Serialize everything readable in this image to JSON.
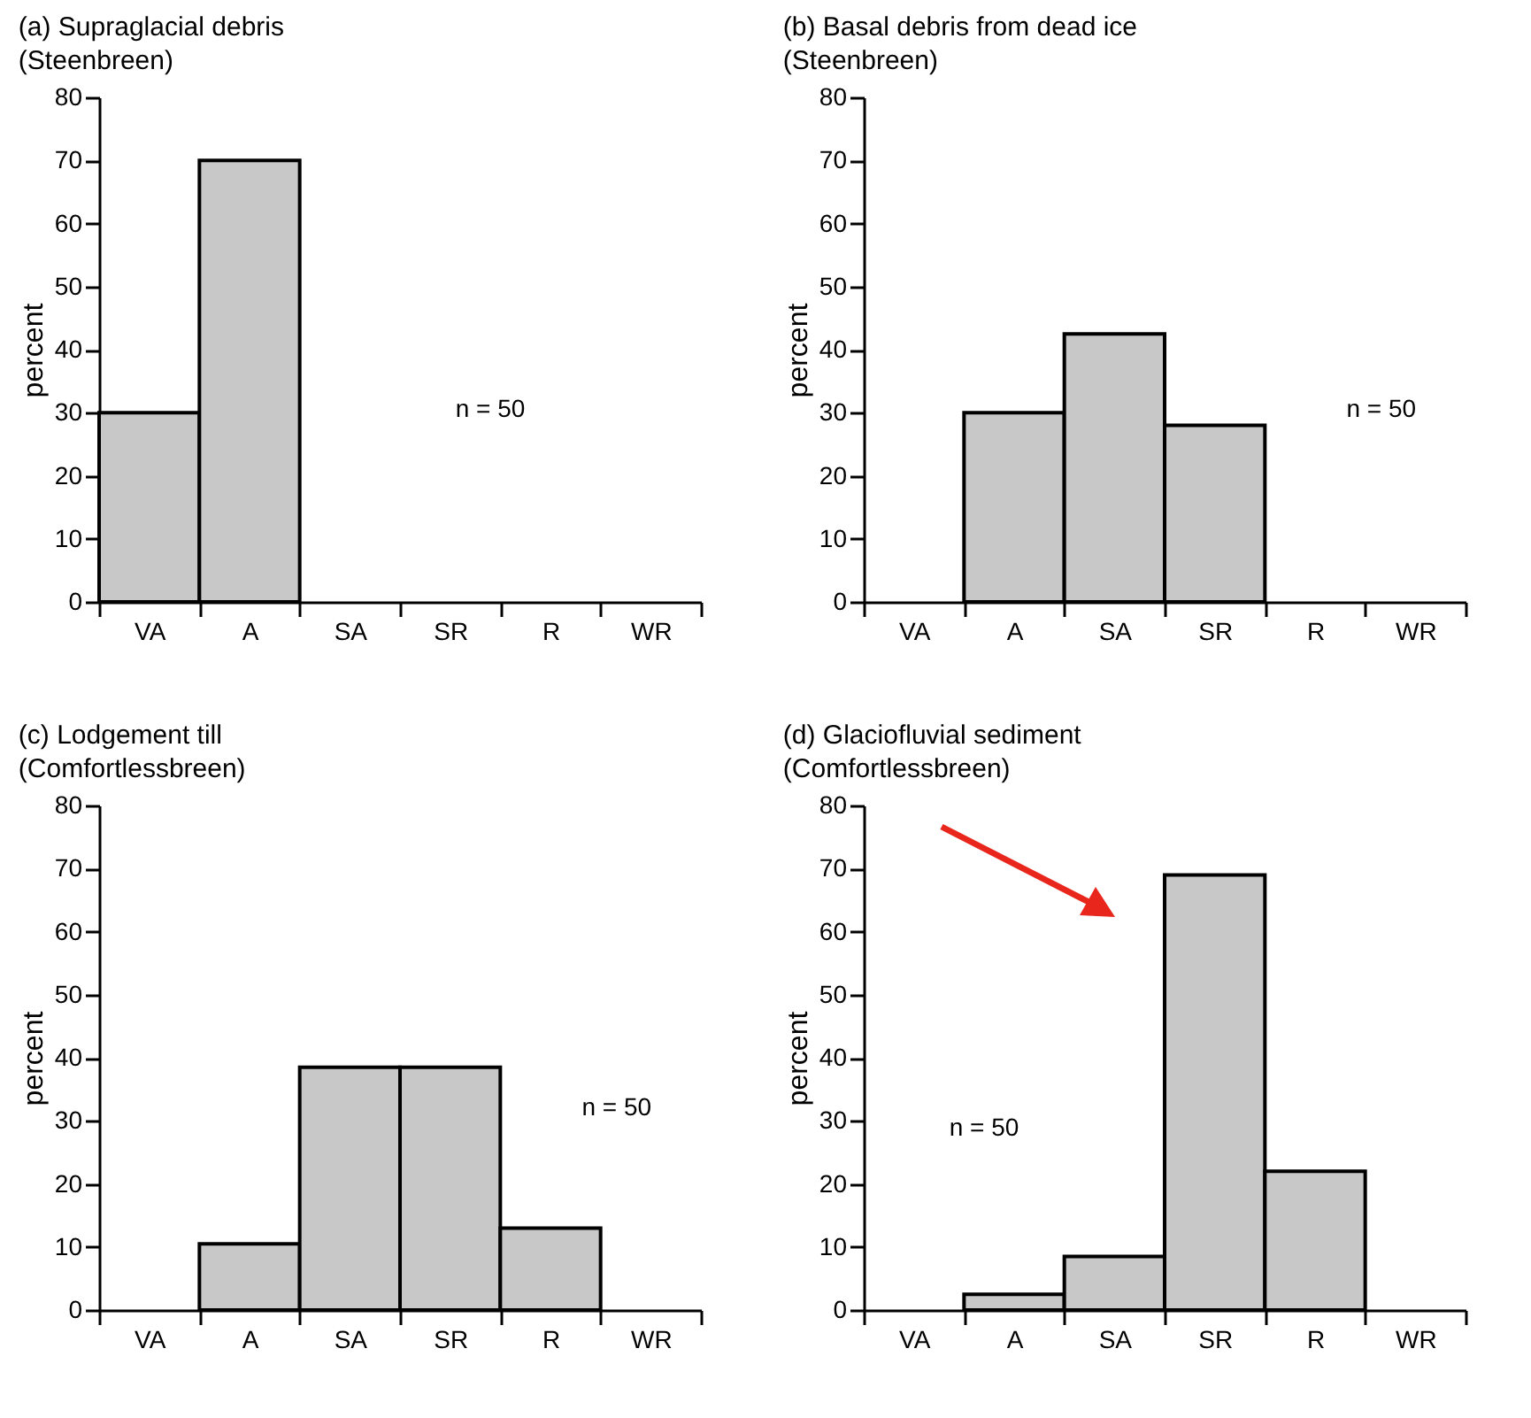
{
  "chart_data": [
    {
      "type": "bar",
      "title": "(a)  Supraglacial debris",
      "subtitle": "(Steenbreen)",
      "ylabel": "percent",
      "categories": [
        "VA",
        "A",
        "SA",
        "SR",
        "R",
        "WR"
      ],
      "values": [
        30,
        70,
        0,
        0,
        0,
        0
      ],
      "color": "#c8c8c8",
      "ylim": [
        0,
        80
      ],
      "yticks": [
        0,
        10,
        20,
        30,
        40,
        50,
        60,
        70,
        80
      ],
      "annotations": [
        "n = 50"
      ]
    },
    {
      "type": "bar",
      "title": "(b)  Basal debris from dead ice",
      "subtitle": "(Steenbreen)",
      "ylabel": "percent",
      "categories": [
        "VA",
        "A",
        "SA",
        "SR",
        "R",
        "WR"
      ],
      "values": [
        0,
        30,
        42.5,
        28,
        0,
        0
      ],
      "color": "#c8c8c8",
      "ylim": [
        0,
        80
      ],
      "yticks": [
        0,
        10,
        20,
        30,
        40,
        50,
        60,
        70,
        80
      ],
      "annotations": [
        "n = 50"
      ]
    },
    {
      "type": "bar",
      "title": "(c)  Lodgement till",
      "subtitle": "(Comfortlessbreen)",
      "ylabel": "percent",
      "categories": [
        "VA",
        "A",
        "SA",
        "SR",
        "R",
        "WR"
      ],
      "values": [
        0,
        10.5,
        38.5,
        38.5,
        13,
        0
      ],
      "color": "#c8c8c8",
      "ylim": [
        0,
        80
      ],
      "yticks": [
        0,
        10,
        20,
        30,
        40,
        50,
        60,
        70,
        80
      ],
      "annotations": [
        "n = 50"
      ]
    },
    {
      "type": "bar",
      "title": "(d)  Glaciofluvial sediment",
      "subtitle": "(Comfortlessbreen)",
      "ylabel": "percent",
      "categories": [
        "VA",
        "A",
        "SA",
        "SR",
        "R",
        "WR"
      ],
      "values": [
        0,
        2.5,
        8.5,
        69,
        22,
        0
      ],
      "color": "#c8c8c8",
      "ylim": [
        0,
        80
      ],
      "yticks": [
        0,
        10,
        20,
        30,
        40,
        50,
        60,
        70,
        80
      ],
      "annotations": [
        "n = 50"
      ]
    }
  ]
}
